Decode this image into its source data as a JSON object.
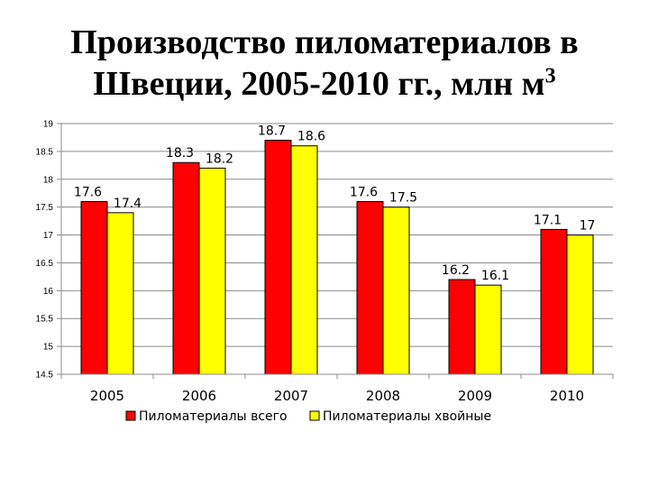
{
  "title_line1": "Производство пиломатериалов в",
  "title_line2": "Швеции, 2005-2010 гг., млн м",
  "title_sup": "3",
  "chart_data": {
    "type": "bar",
    "categories": [
      "2005",
      "2006",
      "2007",
      "2008",
      "2009",
      "2010"
    ],
    "series": [
      {
        "name": "Пиломатериалы всего",
        "color": "#FF0000",
        "values": [
          17.6,
          18.3,
          18.7,
          17.6,
          16.2,
          17.1
        ],
        "labels": [
          "17.6",
          "18.3",
          "18.7",
          "17.6",
          "16.2",
          "17.1"
        ]
      },
      {
        "name": "Пиломатериалы хвойные",
        "color": "#FFFF00",
        "values": [
          17.4,
          18.2,
          18.6,
          17.5,
          16.1,
          17.0
        ],
        "labels": [
          "17.4",
          "18.2",
          "18.6",
          "17.5",
          "16.1",
          "17"
        ]
      }
    ],
    "ylim": [
      14.5,
      19
    ],
    "yticks": [
      14.5,
      15,
      15.5,
      16,
      16.5,
      17,
      17.5,
      18,
      18.5,
      19
    ],
    "ytick_labels": [
      "14.5",
      "15",
      "15.5",
      "16",
      "16.5",
      "17",
      "17.5",
      "18",
      "18.5",
      "19"
    ],
    "grid": true,
    "legend_position": "bottom"
  }
}
